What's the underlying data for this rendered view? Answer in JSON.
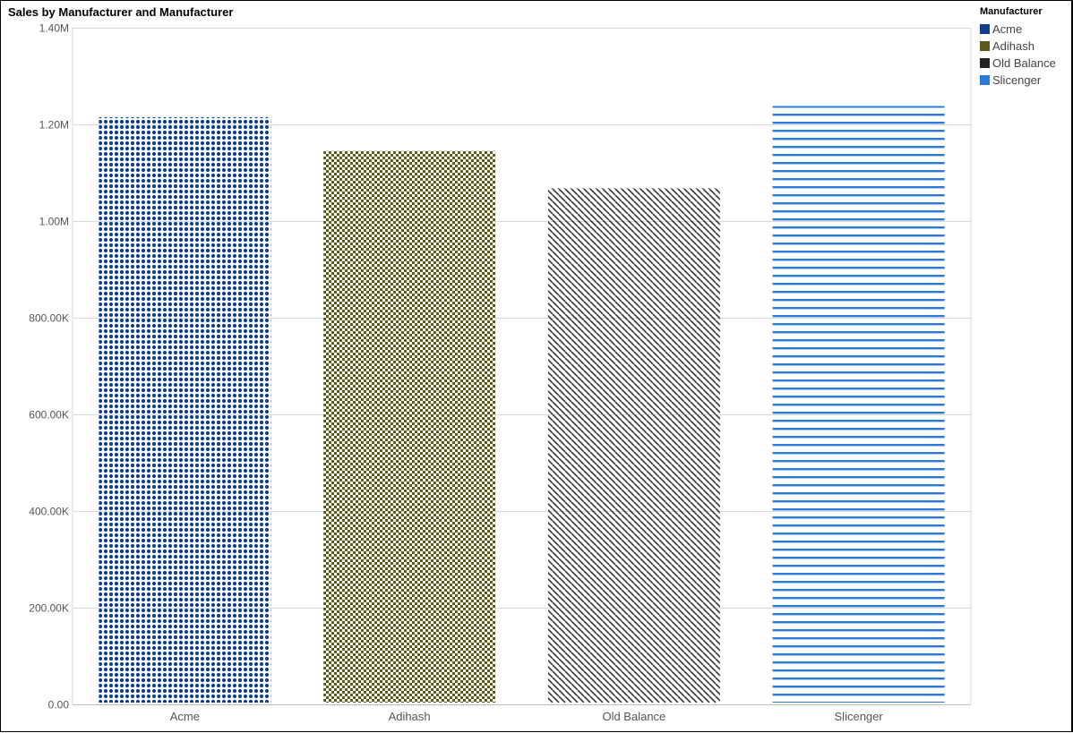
{
  "chart_data": {
    "type": "bar",
    "title": "Sales by Manufacturer and Manufacturer",
    "categories": [
      "Acme",
      "Adihash",
      "Old Balance",
      "Slicenger"
    ],
    "values": [
      1215000,
      1145000,
      1068000,
      1238000
    ],
    "ylim": [
      0,
      1400000
    ],
    "y_ticks": [
      {
        "value": 0,
        "label": "0.00"
      },
      {
        "value": 200000,
        "label": "200.00K"
      },
      {
        "value": 400000,
        "label": "400.00K"
      },
      {
        "value": 600000,
        "label": "600.00K"
      },
      {
        "value": 800000,
        "label": "800.00K"
      },
      {
        "value": 1000000,
        "label": "1.00M"
      },
      {
        "value": 1200000,
        "label": "1.20M"
      },
      {
        "value": 1400000,
        "label": "1.40M"
      }
    ],
    "grid": true,
    "legend": {
      "title": "Manufacturer",
      "placement": "right",
      "entries": [
        {
          "label": "Acme",
          "color": "#0f3f8c"
        },
        {
          "label": "Adihash",
          "color": "#5b5b17"
        },
        {
          "label": "Old Balance",
          "color": "#222222"
        },
        {
          "label": "Slicenger",
          "color": "#2a7ad6"
        }
      ]
    },
    "patterns": [
      "dots",
      "checker",
      "diagonal-hatch",
      "horizontal-lines"
    ]
  }
}
